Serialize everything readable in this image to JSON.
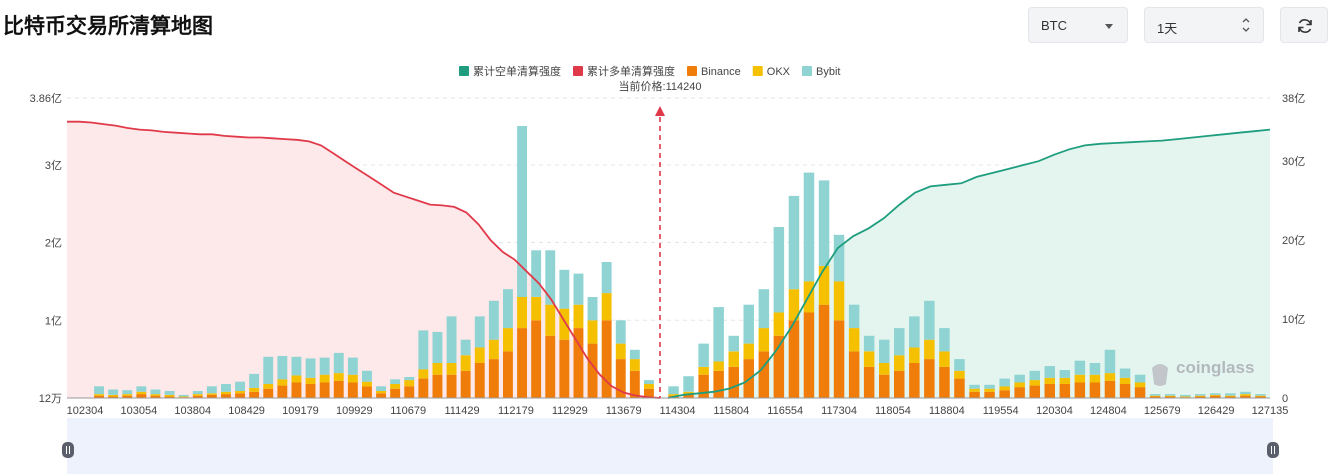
{
  "page": {
    "title": "比特币交易所清算地图",
    "symbol_select": "BTC",
    "period_select": "1天",
    "refresh_icon": "refresh-icon",
    "watermark": "coinglass"
  },
  "chart_data": {
    "type": "bar+area",
    "current_price_label": "当前价格:114240",
    "current_price": 114240,
    "legend": [
      {
        "name": "累计空单清算强度",
        "color": "#1e9e7e"
      },
      {
        "name": "累计多单清算强度",
        "color": "#e03a4a"
      },
      {
        "name": "Binance",
        "color": "#f07d0a"
      },
      {
        "name": "OKX",
        "color": "#f5c000"
      },
      {
        "name": "Bybit",
        "color": "#8fd3d3"
      }
    ],
    "left_axis": {
      "ticks": [
        "12万",
        "1亿",
        "2亿",
        "3亿",
        "3.86亿"
      ],
      "max": 3.86,
      "unit": "亿"
    },
    "right_axis": {
      "ticks": [
        "0",
        "10亿",
        "20亿",
        "30亿",
        "38亿"
      ],
      "max": 38,
      "unit": "亿"
    },
    "x_tick_labels": [
      "102304",
      "103054",
      "103804",
      "108429",
      "109179",
      "109929",
      "110679",
      "111429",
      "112179",
      "112929",
      "113679",
      "114304",
      "115804",
      "116554",
      "117304",
      "118054",
      "118804",
      "119554",
      "120304",
      "124804",
      "125679",
      "126429",
      "127135"
    ],
    "long_cumulative_yi": [
      3.5,
      3.5,
      3.49,
      3.47,
      3.45,
      3.42,
      3.4,
      3.39,
      3.37,
      3.36,
      3.35,
      3.34,
      3.34,
      3.32,
      3.31,
      3.3,
      3.3,
      3.29,
      3.28,
      3.27,
      3.25,
      3.2,
      3.1,
      3.0,
      2.9,
      2.8,
      2.7,
      2.6,
      2.55,
      2.5,
      2.45,
      2.44,
      2.42,
      2.35,
      2.2,
      2.0,
      1.85,
      1.75,
      1.6,
      1.45,
      1.25,
      1.0,
      0.75,
      0.5,
      0.3,
      0.15,
      0.07,
      0.03,
      0.01,
      0.0
    ],
    "short_cumulative_yi": [
      0.0,
      0.4,
      0.6,
      0.8,
      1.2,
      2.0,
      3.5,
      6.0,
      9.0,
      12.5,
      16.0,
      19.0,
      20.5,
      21.5,
      22.8,
      24.5,
      26.0,
      26.8,
      27.0,
      27.2,
      28.0,
      28.5,
      29.0,
      29.5,
      30.0,
      30.8,
      31.5,
      32.0,
      32.2,
      32.3,
      32.4,
      32.5,
      32.6,
      32.8,
      33.0,
      33.2,
      33.4,
      33.6,
      33.8,
      34.0
    ],
    "bars": {
      "unit": "亿",
      "left_segment": [
        [
          0.03,
          0.02,
          0.1
        ],
        [
          0.02,
          0.02,
          0.07
        ],
        [
          0.03,
          0.02,
          0.05
        ],
        [
          0.05,
          0.03,
          0.07
        ],
        [
          0.03,
          0.02,
          0.06
        ],
        [
          0.02,
          0.02,
          0.05
        ],
        [
          0.01,
          0.01,
          0.02
        ],
        [
          0.03,
          0.02,
          0.04
        ],
        [
          0.04,
          0.02,
          0.09
        ],
        [
          0.05,
          0.03,
          0.1
        ],
        [
          0.06,
          0.03,
          0.12
        ],
        [
          0.08,
          0.05,
          0.18
        ],
        [
          0.12,
          0.06,
          0.35
        ],
        [
          0.16,
          0.08,
          0.3
        ],
        [
          0.2,
          0.09,
          0.24
        ],
        [
          0.18,
          0.08,
          0.25
        ],
        [
          0.2,
          0.1,
          0.22
        ],
        [
          0.22,
          0.1,
          0.26
        ],
        [
          0.2,
          0.1,
          0.22
        ],
        [
          0.15,
          0.06,
          0.14
        ],
        [
          0.06,
          0.03,
          0.06
        ],
        [
          0.12,
          0.06,
          0.06
        ],
        [
          0.15,
          0.08,
          0.04
        ],
        [
          0.25,
          0.12,
          0.5
        ],
        [
          0.3,
          0.15,
          0.4
        ],
        [
          0.3,
          0.15,
          0.6
        ],
        [
          0.35,
          0.2,
          0.2
        ],
        [
          0.45,
          0.2,
          0.4
        ],
        [
          0.5,
          0.25,
          0.5
        ],
        [
          0.6,
          0.3,
          0.5
        ],
        [
          0.9,
          0.4,
          2.2
        ],
        [
          1.0,
          0.3,
          0.6
        ],
        [
          0.8,
          0.4,
          0.7
        ],
        [
          0.75,
          0.4,
          0.5
        ],
        [
          0.9,
          0.3,
          0.4
        ],
        [
          0.7,
          0.3,
          0.3
        ],
        [
          1.0,
          0.35,
          0.4
        ],
        [
          0.5,
          0.2,
          0.3
        ],
        [
          0.35,
          0.15,
          0.12
        ],
        [
          0.12,
          0.06,
          0.05
        ]
      ],
      "right_segment": [
        [
          0.03,
          0.02,
          0.1
        ],
        [
          0.05,
          0.03,
          0.2
        ],
        [
          0.3,
          0.1,
          0.3
        ],
        [
          0.35,
          0.12,
          0.7
        ],
        [
          0.4,
          0.2,
          0.2
        ],
        [
          0.5,
          0.2,
          0.5
        ],
        [
          0.6,
          0.3,
          0.5
        ],
        [
          0.8,
          0.3,
          1.1
        ],
        [
          1.0,
          0.4,
          1.2
        ],
        [
          1.1,
          0.4,
          1.4
        ],
        [
          1.2,
          0.5,
          1.1
        ],
        [
          1.0,
          0.5,
          0.6
        ],
        [
          0.6,
          0.3,
          0.3
        ],
        [
          0.4,
          0.2,
          0.2
        ],
        [
          0.3,
          0.15,
          0.3
        ],
        [
          0.35,
          0.2,
          0.35
        ],
        [
          0.45,
          0.2,
          0.4
        ],
        [
          0.5,
          0.25,
          0.5
        ],
        [
          0.4,
          0.2,
          0.3
        ],
        [
          0.25,
          0.1,
          0.15
        ],
        [
          0.08,
          0.04,
          0.05
        ],
        [
          0.08,
          0.04,
          0.05
        ],
        [
          0.1,
          0.05,
          0.1
        ],
        [
          0.14,
          0.06,
          0.1
        ],
        [
          0.16,
          0.07,
          0.12
        ],
        [
          0.18,
          0.08,
          0.15
        ],
        [
          0.18,
          0.08,
          0.1
        ],
        [
          0.2,
          0.1,
          0.18
        ],
        [
          0.2,
          0.1,
          0.15
        ],
        [
          0.22,
          0.1,
          0.3
        ],
        [
          0.18,
          0.08,
          0.12
        ],
        [
          0.14,
          0.06,
          0.1
        ],
        [
          0.02,
          0.01,
          0.02
        ],
        [
          0.02,
          0.01,
          0.02
        ],
        [
          0.01,
          0.01,
          0.02
        ],
        [
          0.02,
          0.01,
          0.02
        ],
        [
          0.03,
          0.01,
          0.02
        ],
        [
          0.02,
          0.01,
          0.03
        ],
        [
          0.03,
          0.02,
          0.03
        ],
        [
          0.02,
          0.01,
          0.02
        ]
      ]
    },
    "grid": true,
    "legend_position": "top-center"
  }
}
